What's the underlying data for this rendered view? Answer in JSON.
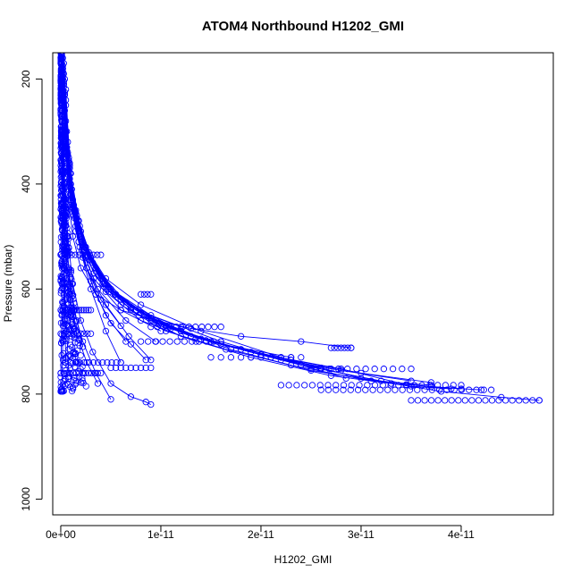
{
  "chart_data": {
    "type": "scatter",
    "title": "ATOM4 Northbound H1202_GMI",
    "xlabel": "H1202_GMI",
    "ylabel": "Pressure (mbar)",
    "xlim": [
      0,
      4.8e-11
    ],
    "ylim": [
      1030,
      150
    ],
    "y_inverted": true,
    "x_ticks": [
      {
        "value": 0,
        "label": "0e+00"
      },
      {
        "value": 1e-11,
        "label": "1e-11"
      },
      {
        "value": 2e-11,
        "label": "2e-11"
      },
      {
        "value": 3e-11,
        "label": "3e-11"
      },
      {
        "value": 4e-11,
        "label": "4e-11"
      }
    ],
    "y_ticks": [
      {
        "value": 200,
        "label": "200"
      },
      {
        "value": 400,
        "label": "400"
      },
      {
        "value": 600,
        "label": "600"
      },
      {
        "value": 800,
        "label": "800"
      },
      {
        "value": 1000,
        "label": "1000"
      }
    ],
    "style": {
      "color": "#0000ff",
      "marker": "open-circle",
      "connected": true
    },
    "series": [
      {
        "x": [
          2e-13,
          4e-13,
          6e-13,
          8e-13,
          1.2e-12,
          2e-12,
          3.5e-12,
          6e-12,
          9.5e-12,
          1.3e-11,
          1.8e-11,
          2.4e-11,
          2.9e-11
        ],
        "y": [
          160,
          260,
          360,
          430,
          500,
          560,
          610,
          640,
          660,
          675,
          690,
          700,
          712
        ]
      },
      {
        "x": [
          3e-13,
          5e-13,
          9e-13,
          1.4e-12,
          2.5e-12,
          4.5e-12,
          8e-12,
          1.4e-11,
          2.2e-11,
          3e-11,
          3.8e-11,
          4.4e-11,
          4.78e-11
        ],
        "y": [
          170,
          280,
          380,
          450,
          520,
          580,
          630,
          680,
          730,
          770,
          795,
          806,
          812
        ]
      },
      {
        "x": [
          2e-13,
          6e-13,
          1e-12,
          1.8e-12,
          3e-12,
          5e-12,
          9e-12,
          1.6e-11,
          2.4e-11,
          3.2e-11,
          3.7e-11,
          4.2e-11
        ],
        "y": [
          180,
          300,
          400,
          470,
          540,
          600,
          650,
          700,
          745,
          775,
          786,
          792
        ]
      },
      {
        "x": [
          4e-13,
          7e-13,
          1.1e-12,
          2e-12,
          3.5e-12,
          6e-12,
          1.05e-11,
          1.7e-11,
          2.5e-11,
          3.3e-11,
          4e-11
        ],
        "y": [
          200,
          320,
          410,
          490,
          560,
          620,
          670,
          715,
          755,
          780,
          790
        ]
      },
      {
        "x": [
          3e-13,
          6e-13,
          1.2e-12,
          2.2e-12,
          4e-12,
          7e-12,
          1.2e-11,
          1.9e-11,
          2.7e-11,
          3.5e-11,
          3.9e-11
        ],
        "y": [
          190,
          340,
          430,
          510,
          580,
          640,
          690,
          730,
          765,
          785,
          790
        ]
      },
      {
        "x": [
          5e-13,
          9e-13,
          1.6e-12,
          3e-12,
          5.5e-12,
          1e-11,
          1.6e-11,
          2.3e-11,
          3e-11,
          3.7e-11
        ],
        "y": [
          220,
          360,
          460,
          540,
          610,
          670,
          705,
          735,
          760,
          778
        ]
      },
      {
        "x": [
          2e-13,
          5e-13,
          1e-12,
          1.9e-12,
          3.3e-12,
          6e-12,
          1.05e-11,
          1.65e-11,
          2.3e-11,
          3.1e-11,
          3.7e-11
        ],
        "y": [
          175,
          300,
          420,
          500,
          570,
          630,
          680,
          715,
          745,
          775,
          783
        ]
      },
      {
        "x": [
          3e-13,
          8e-13,
          1.5e-12,
          2.8e-12,
          5e-12,
          9e-12,
          1.5e-11,
          2.1e-11,
          2.8e-11,
          3.5e-11
        ],
        "y": [
          210,
          350,
          450,
          530,
          600,
          655,
          700,
          730,
          755,
          775
        ]
      },
      {
        "x": [
          4e-13,
          9e-13,
          1.7e-12,
          3.2e-12,
          6e-12,
          1.1e-11,
          1.8e-11,
          2.6e-11,
          3.3e-11
        ],
        "y": [
          230,
          370,
          470,
          550,
          620,
          675,
          715,
          752,
          780
        ]
      },
      {
        "x": [
          2e-13,
          6e-13,
          1.3e-12,
          2.4e-12,
          4.4e-12,
          8e-12,
          1.3e-11,
          2e-11,
          2.7e-11
        ],
        "y": [
          195,
          330,
          440,
          520,
          590,
          645,
          690,
          725,
          752
        ]
      },
      {
        "x": [
          3e-13,
          7e-13,
          1.4e-12,
          2.6e-12,
          4.8e-12,
          8.8e-12,
          1.4e-11,
          2.2e-11,
          2.6e-11
        ],
        "y": [
          205,
          345,
          455,
          530,
          600,
          655,
          695,
          735,
          750
        ]
      },
      {
        "x": [
          5e-13,
          1e-12,
          1.9e-12,
          3.5e-12,
          6.5e-12,
          1.2e-11,
          1.9e-11,
          2.8e-11,
          3.45e-11
        ],
        "y": [
          240,
          380,
          480,
          560,
          625,
          680,
          720,
          752,
          782
        ]
      },
      {
        "x": [
          2e-13,
          5e-13,
          1.1e-12,
          2.1e-12,
          3.8e-12,
          7e-12,
          1.2e-11,
          1.8e-11,
          2.4e-11,
          2.85e-11
        ],
        "y": [
          185,
          315,
          425,
          505,
          575,
          635,
          680,
          715,
          745,
          770
        ]
      },
      {
        "x": [
          4e-13,
          9e-13,
          1.6e-12,
          2.9e-12,
          5.4e-12,
          9.8e-12,
          1.6e-11,
          2.3e-11
        ],
        "y": [
          225,
          365,
          465,
          545,
          610,
          665,
          705,
          730
        ]
      },
      {
        "x": [
          3e-13,
          8e-13,
          1.5e-12,
          2.7e-12,
          4.9e-12,
          9e-12,
          1.45e-11,
          2e-11
        ],
        "y": [
          215,
          355,
          455,
          535,
          605,
          660,
          698,
          725
        ]
      },
      {
        "x": [
          2e-13,
          6e-13,
          1.2e-12,
          2.3e-12,
          4.2e-12,
          7.5e-12,
          1.2e-11
        ],
        "y": [
          200,
          335,
          440,
          520,
          590,
          640,
          672
        ]
      },
      {
        "x": [
          3e-13,
          7e-13,
          1.3e-12,
          2.4e-12,
          4.3e-12,
          7.8e-12,
          1.3e-11
        ],
        "y": [
          210,
          345,
          450,
          525,
          595,
          650,
          690
        ]
      },
      {
        "x": [
          4e-13,
          8e-13,
          1.4e-12,
          2.5e-12,
          4.5e-12,
          8e-12,
          1.35e-11
        ],
        "y": [
          230,
          370,
          465,
          540,
          605,
          660,
          700
        ]
      },
      {
        "x": [
          2e-13,
          5e-13,
          1e-12,
          1.8e-12,
          3.3e-12,
          6e-12,
          1e-11
        ],
        "y": [
          190,
          320,
          430,
          510,
          580,
          640,
          680
        ]
      },
      {
        "x": [
          3e-13,
          7e-13,
          1.2e-12,
          2.1e-12,
          3.7e-12,
          6.5e-12,
          9.5e-12
        ],
        "y": [
          205,
          340,
          445,
          525,
          600,
          660,
          700
        ]
      },
      {
        "x": [
          5e-13,
          9e-13,
          1.5e-12,
          2.6e-12,
          4.5e-12,
          6.8e-12,
          9e-12
        ],
        "y": [
          250,
          390,
          480,
          560,
          630,
          690,
          735
        ]
      },
      {
        "x": [
          2e-13,
          4e-13,
          8e-13,
          1.5e-12,
          2.6e-12,
          4e-12,
          6e-12
        ],
        "y": [
          180,
          300,
          410,
          490,
          560,
          620,
          670
        ]
      },
      {
        "x": [
          3e-13,
          6e-13,
          1e-12,
          1.8e-12,
          3e-12,
          4.5e-12,
          6.5e-12
        ],
        "y": [
          210,
          330,
          430,
          510,
          585,
          650,
          700
        ]
      },
      {
        "x": [
          4e-13,
          8e-13,
          1.3e-12,
          2.2e-12,
          3.5e-12,
          5e-12,
          7e-12,
          8.5e-12
        ],
        "y": [
          230,
          360,
          460,
          540,
          610,
          665,
          705,
          735
        ]
      },
      {
        "x": [
          2e-13,
          5e-13,
          1e-12,
          1.9e-12,
          3e-12,
          4.5e-12,
          6e-12
        ],
        "y": [
          200,
          320,
          440,
          520,
          600,
          680,
          740
        ]
      },
      {
        "x": [
          1e-13,
          2e-13,
          3e-13,
          5e-13,
          8e-13,
          1.3e-12,
          2.2e-12,
          3.5e-12,
          5e-12
        ],
        "y": [
          160,
          260,
          380,
          480,
          560,
          640,
          700,
          760,
          810
        ]
      },
      {
        "x": [
          1e-13,
          2e-13,
          4e-13,
          7e-13,
          1.2e-12,
          2e-12,
          3.2e-12,
          5e-12,
          7e-12,
          8.5e-12,
          9e-12
        ],
        "y": [
          170,
          290,
          400,
          500,
          590,
          660,
          720,
          780,
          805,
          815,
          820
        ]
      },
      {
        "x": [
          1e-13,
          2e-13,
          3e-13,
          5e-13,
          9e-13,
          1.5e-12,
          2.6e-12,
          3.7e-12
        ],
        "y": [
          200,
          320,
          430,
          530,
          620,
          680,
          740,
          780
        ]
      },
      {
        "x": [
          1e-13,
          2e-13,
          4e-13,
          6e-13,
          1e-12,
          1.6e-12,
          2.2e-12
        ],
        "y": [
          180,
          310,
          420,
          520,
          600,
          660,
          710
        ]
      },
      {
        "x": [
          1e-13,
          2e-13,
          3e-13,
          4e-13,
          6e-13,
          9e-13,
          1.3e-12
        ],
        "y": [
          190,
          300,
          410,
          500,
          580,
          650,
          720
        ]
      },
      {
        "x": [
          0,
          1e-13,
          2e-13,
          3e-13,
          4e-13,
          6e-13,
          8e-13
        ],
        "y": [
          160,
          280,
          400,
          500,
          600,
          680,
          760
        ]
      },
      {
        "x": [
          0,
          1e-13,
          1e-13,
          2e-13,
          3e-13,
          4e-13,
          5e-13
        ],
        "y": [
          170,
          260,
          360,
          460,
          560,
          650,
          740
        ]
      },
      {
        "x": [
          0,
          1e-13,
          2e-13,
          2e-13,
          3e-13,
          3e-13,
          2e-13,
          1e-13
        ],
        "y": [
          150,
          230,
          320,
          420,
          520,
          610,
          700,
          790
        ]
      },
      {
        "x": [
          1e-13,
          1e-13,
          2e-13,
          2e-13,
          1e-13,
          1e-13,
          0
        ],
        "y": [
          155,
          250,
          350,
          450,
          550,
          650,
          760
        ]
      }
    ],
    "clusters": [
      {
        "x_range": [
          3.5e-11,
          4.78e-11
        ],
        "y": 812,
        "n": 20
      },
      {
        "x_range": [
          2.6e-11,
          4.3e-11
        ],
        "y": 792,
        "n": 24
      },
      {
        "x_range": [
          2.2e-11,
          4e-11
        ],
        "y": 783,
        "n": 24
      },
      {
        "x_range": [
          2.5e-11,
          3.5e-11
        ],
        "y": 752,
        "n": 12
      },
      {
        "x_range": [
          2.7e-11,
          2.9e-11
        ],
        "y": 712,
        "n": 7
      },
      {
        "x_range": [
          1.5e-11,
          2.4e-11
        ],
        "y": 730,
        "n": 10
      },
      {
        "x_range": [
          8e-12,
          1.6e-11
        ],
        "y": 700,
        "n": 12
      },
      {
        "x_range": [
          9e-12,
          1.6e-11
        ],
        "y": 672,
        "n": 12
      },
      {
        "x_range": [
          5e-12,
          9e-12
        ],
        "y": 750,
        "n": 9
      },
      {
        "x_range": [
          1e-12,
          6e-12
        ],
        "y": 740,
        "n": 12
      },
      {
        "x_range": [
          0,
          4e-12
        ],
        "y": 760,
        "n": 14
      },
      {
        "x_range": [
          0,
          3e-12
        ],
        "y": 640,
        "n": 14
      },
      {
        "x_range": [
          0,
          3e-12
        ],
        "y": 685,
        "n": 10
      },
      {
        "x_range": [
          0,
          4e-12
        ],
        "y": 535,
        "n": 12
      },
      {
        "x_range": [
          8e-12,
          9e-12
        ],
        "y": 610,
        "n": 4
      },
      {
        "x_range": [
          0,
          2e-13
        ],
        "y": 795,
        "n": 4
      }
    ]
  }
}
